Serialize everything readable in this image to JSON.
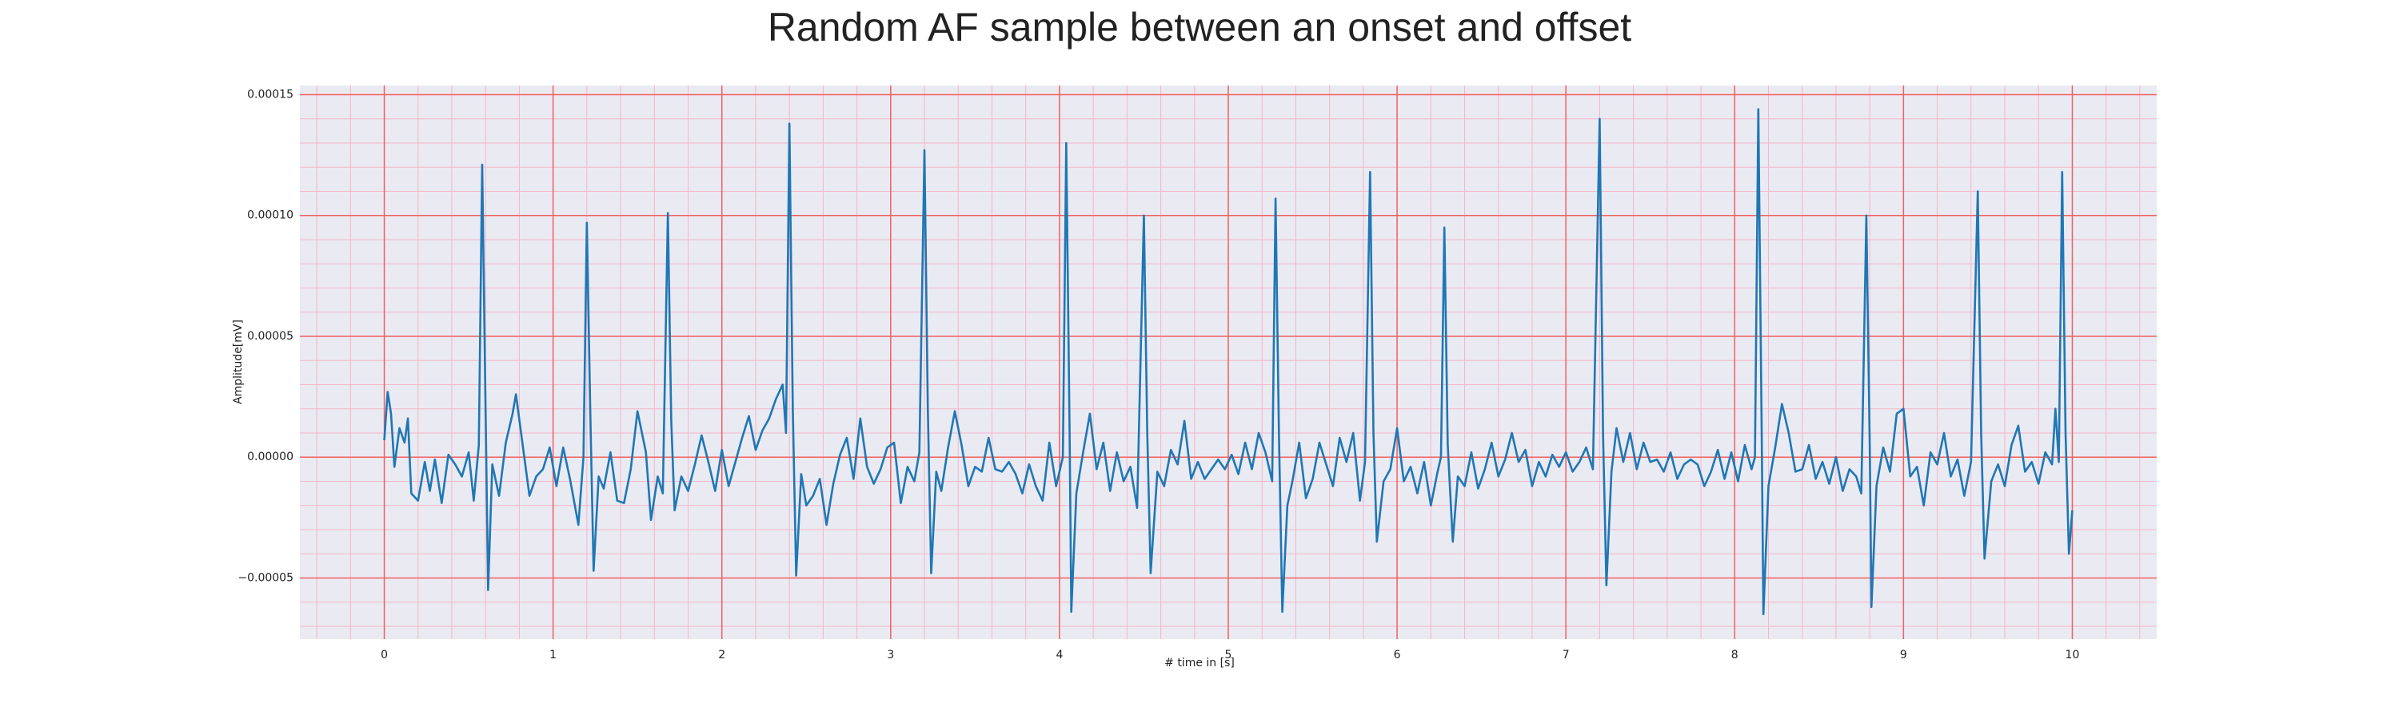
{
  "chart_data": {
    "type": "line",
    "title": "Random AF sample between an onset and offset",
    "xlabel": "# time in [s]",
    "ylabel": "Amplitude[mV]",
    "color": "#1f77b4",
    "grid": true,
    "minor_grid": true,
    "xlim": [
      -0.5,
      10.5
    ],
    "ylim": [
      -7.53e-05,
      0.0001538
    ],
    "xticks": [
      0,
      1,
      2,
      3,
      4,
      5,
      6,
      7,
      8,
      9,
      10
    ],
    "yticks": [
      {
        "value": -5e-05,
        "label": "−0.00005"
      },
      {
        "value": 0,
        "label": "0.00000"
      },
      {
        "value": 5e-05,
        "label": "0.00005"
      },
      {
        "value": 0.0001,
        "label": "0.00010"
      },
      {
        "value": 0.00015,
        "label": "0.00015"
      }
    ],
    "x": [
      0,
      0.02,
      0.04,
      0.06,
      0.09,
      0.12,
      0.14,
      0.16,
      0.2,
      0.24,
      0.27,
      0.3,
      0.34,
      0.38,
      0.42,
      0.46,
      0.5,
      0.53,
      0.56,
      0.58,
      0.6,
      0.615,
      0.64,
      0.68,
      0.72,
      0.76,
      0.78,
      0.82,
      0.86,
      0.9,
      0.94,
      0.98,
      1.02,
      1.06,
      1.1,
      1.15,
      1.18,
      1.2,
      1.22,
      1.24,
      1.27,
      1.3,
      1.34,
      1.38,
      1.42,
      1.46,
      1.5,
      1.55,
      1.58,
      1.62,
      1.65,
      1.68,
      1.7,
      1.72,
      1.76,
      1.8,
      1.84,
      1.88,
      1.92,
      1.96,
      2.0,
      2.04,
      2.08,
      2.12,
      2.16,
      2.2,
      2.24,
      2.28,
      2.32,
      2.36,
      2.38,
      2.4,
      2.42,
      2.44,
      2.47,
      2.5,
      2.54,
      2.58,
      2.62,
      2.66,
      2.7,
      2.74,
      2.78,
      2.82,
      2.86,
      2.9,
      2.94,
      2.98,
      3.02,
      3.06,
      3.1,
      3.14,
      3.17,
      3.2,
      3.22,
      3.24,
      3.27,
      3.3,
      3.34,
      3.38,
      3.42,
      3.46,
      3.5,
      3.54,
      3.58,
      3.62,
      3.66,
      3.7,
      3.74,
      3.78,
      3.82,
      3.86,
      3.9,
      3.94,
      3.98,
      4.02,
      4.04,
      4.06,
      4.07,
      4.1,
      4.14,
      4.18,
      4.22,
      4.26,
      4.3,
      4.34,
      4.38,
      4.42,
      4.46,
      4.5,
      4.52,
      4.54,
      4.58,
      4.62,
      4.66,
      4.7,
      4.74,
      4.78,
      4.82,
      4.86,
      4.9,
      4.94,
      4.98,
      5.02,
      5.06,
      5.1,
      5.14,
      5.18,
      5.22,
      5.26,
      5.28,
      5.3,
      5.32,
      5.35,
      5.38,
      5.42,
      5.46,
      5.5,
      5.54,
      5.58,
      5.62,
      5.66,
      5.7,
      5.74,
      5.78,
      5.81,
      5.84,
      5.86,
      5.88,
      5.92,
      5.96,
      6.0,
      6.04,
      6.08,
      6.12,
      6.16,
      6.2,
      6.24,
      6.26,
      6.28,
      6.3,
      6.33,
      6.36,
      6.4,
      6.44,
      6.48,
      6.52,
      6.56,
      6.6,
      6.64,
      6.68,
      6.72,
      6.76,
      6.8,
      6.84,
      6.88,
      6.92,
      6.96,
      7.0,
      7.04,
      7.08,
      7.12,
      7.16,
      7.2,
      7.22,
      7.24,
      7.27,
      7.3,
      7.34,
      7.38,
      7.42,
      7.46,
      7.5,
      7.54,
      7.58,
      7.62,
      7.66,
      7.7,
      7.74,
      7.78,
      7.82,
      7.86,
      7.9,
      7.94,
      7.98,
      8.02,
      8.06,
      8.1,
      8.12,
      8.14,
      8.16,
      8.17,
      8.2,
      8.24,
      8.28,
      8.32,
      8.36,
      8.4,
      8.44,
      8.48,
      8.52,
      8.56,
      8.6,
      8.64,
      8.68,
      8.72,
      8.75,
      8.78,
      8.8,
      8.81,
      8.84,
      8.88,
      8.92,
      8.96,
      9.0,
      9.04,
      9.08,
      9.12,
      9.16,
      9.2,
      9.24,
      9.28,
      9.32,
      9.36,
      9.4,
      9.44,
      9.46,
      9.48,
      9.52,
      9.56,
      9.6,
      9.64,
      9.68,
      9.72,
      9.76,
      9.8,
      9.84,
      9.88,
      9.9,
      9.92,
      9.94,
      9.96,
      9.98,
      10.0
    ],
    "values": [
      7e-06,
      2.7e-05,
      1.8e-05,
      -4e-06,
      1.2e-05,
      6e-06,
      1.6e-05,
      -1.5e-05,
      -1.8e-05,
      -2e-06,
      -1.4e-05,
      -1e-06,
      -1.9e-05,
      1e-06,
      -3e-06,
      -8e-06,
      2e-06,
      -1.8e-05,
      5e-06,
      0.000121,
      2e-05,
      -5.5e-05,
      -3e-06,
      -1.6e-05,
      6e-06,
      1.8e-05,
      2.6e-05,
      5e-06,
      -1.6e-05,
      -8e-06,
      -5e-06,
      4e-06,
      -1.2e-05,
      4e-06,
      -9e-06,
      -2.8e-05,
      0,
      9.7e-05,
      2e-05,
      -4.7e-05,
      -8e-06,
      -1.3e-05,
      2e-06,
      -1.8e-05,
      -1.9e-05,
      -5e-06,
      1.9e-05,
      2e-06,
      -2.6e-05,
      -8e-06,
      -1.5e-05,
      0.000101,
      1.5e-05,
      -2.2e-05,
      -8e-06,
      -1.4e-05,
      -3e-06,
      9e-06,
      -2e-06,
      -1.4e-05,
      3e-06,
      -1.2e-05,
      -2e-06,
      8e-06,
      1.7e-05,
      3e-06,
      1.1e-05,
      1.6e-05,
      2.4e-05,
      3e-05,
      1e-05,
      0.000138,
      2e-05,
      -4.9e-05,
      -7e-06,
      -2e-05,
      -1.6e-05,
      -9e-06,
      -2.8e-05,
      -1.1e-05,
      1e-06,
      8e-06,
      -9e-06,
      1.6e-05,
      -4e-06,
      -1.1e-05,
      -5e-06,
      4e-06,
      6e-06,
      -1.9e-05,
      -4e-06,
      -1e-05,
      2e-06,
      0.000127,
      2e-05,
      -4.8e-05,
      -6e-06,
      -1.4e-05,
      4e-06,
      1.9e-05,
      5e-06,
      -1.2e-05,
      -4e-06,
      -6e-06,
      8e-06,
      -5e-06,
      -6e-06,
      -2e-06,
      -7e-06,
      -1.5e-05,
      -3e-06,
      -1.2e-05,
      -1.8e-05,
      6e-06,
      -1.2e-05,
      0,
      0.00013,
      1e-05,
      -6.4e-05,
      -1.5e-05,
      2e-06,
      1.8e-05,
      -5e-06,
      6e-06,
      -1.4e-05,
      2e-06,
      -1e-05,
      -4e-06,
      -2.1e-05,
      0.0001,
      1e-05,
      -4.8e-05,
      -6e-06,
      -1.2e-05,
      3e-06,
      -3e-06,
      1.5e-05,
      -9e-06,
      -2e-06,
      -9e-06,
      -5e-06,
      -1e-06,
      -5e-06,
      1e-06,
      -7e-06,
      6e-06,
      -5e-06,
      1e-05,
      2e-06,
      -1e-05,
      0.000107,
      1e-05,
      -6.4e-05,
      -2e-05,
      -1e-05,
      6e-06,
      -1.7e-05,
      -9e-06,
      6e-06,
      -3e-06,
      -1.2e-05,
      8e-06,
      -2e-06,
      1e-05,
      -1.8e-05,
      -2e-06,
      0.000118,
      1e-05,
      -3.5e-05,
      -1e-05,
      -5e-06,
      1.2e-05,
      -1e-05,
      -4e-06,
      -1.5e-05,
      -2e-06,
      -2e-05,
      -6e-06,
      0,
      9.5e-05,
      5e-06,
      -3.5e-05,
      -8e-06,
      -1.2e-05,
      2e-06,
      -1.3e-05,
      -5e-06,
      6e-06,
      -8e-06,
      -1e-06,
      1e-05,
      -2e-06,
      3e-06,
      -1.2e-05,
      -2e-06,
      -8e-06,
      1e-06,
      -4e-06,
      2e-06,
      -6e-06,
      -2e-06,
      4e-06,
      -5e-06,
      0.00014,
      1e-05,
      -5.3e-05,
      -6e-06,
      1.2e-05,
      -2e-06,
      1e-05,
      -5e-06,
      6e-06,
      -2e-06,
      -1e-06,
      -6e-06,
      2e-06,
      -9e-06,
      -3e-06,
      -1e-06,
      -3e-06,
      -1.2e-05,
      -6e-06,
      3e-06,
      -9e-06,
      2e-06,
      -1e-05,
      5e-06,
      -5e-06,
      0,
      0.000144,
      1e-05,
      -6.5e-05,
      -1.2e-05,
      4e-06,
      2.2e-05,
      1e-05,
      -6e-06,
      -5e-06,
      5e-06,
      -9e-06,
      -2e-06,
      -1.1e-05,
      0,
      -1.4e-05,
      -5e-06,
      -8e-06,
      -1.5e-05,
      0.0001,
      5e-06,
      -6.2e-05,
      -1.2e-05,
      4e-06,
      -6e-06,
      1.8e-05,
      2e-05,
      -8e-06,
      -4e-06,
      -2e-05,
      2e-06,
      -3e-06,
      1e-05,
      -8e-06,
      -1e-06,
      -1.6e-05,
      -2e-06,
      0.00011,
      1e-05,
      -4.2e-05,
      -1e-05,
      -3e-06,
      -1.2e-05,
      5e-06,
      1.3e-05,
      -6e-06,
      -2e-06,
      -1.1e-05,
      2e-06,
      -3e-06,
      2e-05,
      -2e-06,
      0.000118,
      1e-05,
      -4e-05,
      -2.2e-05
    ]
  }
}
